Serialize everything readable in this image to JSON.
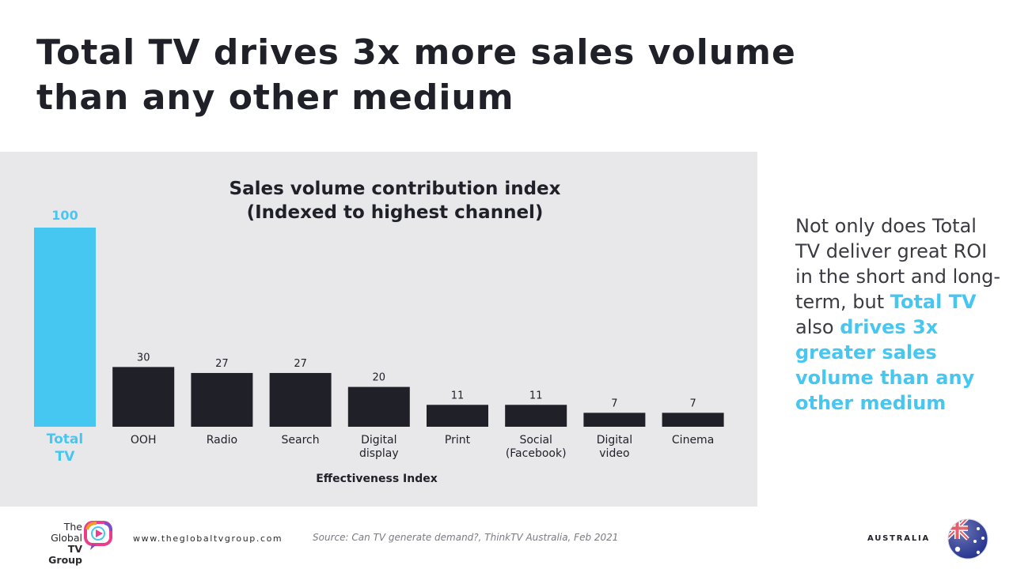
{
  "headline": {
    "line1": "Total TV drives 3x more sales volume",
    "line2": "than any other medium"
  },
  "chart_data": {
    "type": "bar",
    "title": "Sales volume contribution index",
    "subtitle": "(Indexed to highest channel)",
    "xlabel": "Effectiveness Index",
    "ylabel": "",
    "ylim": [
      0,
      100
    ],
    "categories": [
      [
        "Total",
        "TV"
      ],
      [
        "OOH"
      ],
      [
        "Radio"
      ],
      [
        "Search"
      ],
      [
        "Digital",
        "display"
      ],
      [
        "Print"
      ],
      [
        "Social",
        "(Facebook)"
      ],
      [
        "Digital",
        "video"
      ],
      [
        "Cinema"
      ]
    ],
    "values": [
      100,
      30,
      27,
      27,
      20,
      11,
      11,
      7,
      7
    ],
    "highlight_index": 0,
    "colors": {
      "highlight": "#45c7f2",
      "default": "#1f2028",
      "label_default": "#1f2028"
    }
  },
  "side_text": {
    "intro": "Not only does Total TV deliver great ROI in the short and long-term, but",
    "hl1": "Total TV",
    "mid": " also ",
    "hl2": "drives 3x greater sales volume than any other medium"
  },
  "footer": {
    "logo_line1": "The",
    "logo_line2": "Global",
    "logo_line3": "TV Group",
    "website": "www.theglobaltvgroup.com",
    "source": "Source: Can TV generate demand?, ThinkTV Australia, Feb 2021",
    "region": "AUSTRALIA"
  },
  "colors": {
    "accent": "#45c7f2",
    "text": "#1f2028",
    "panel": "#e8e8eb"
  }
}
